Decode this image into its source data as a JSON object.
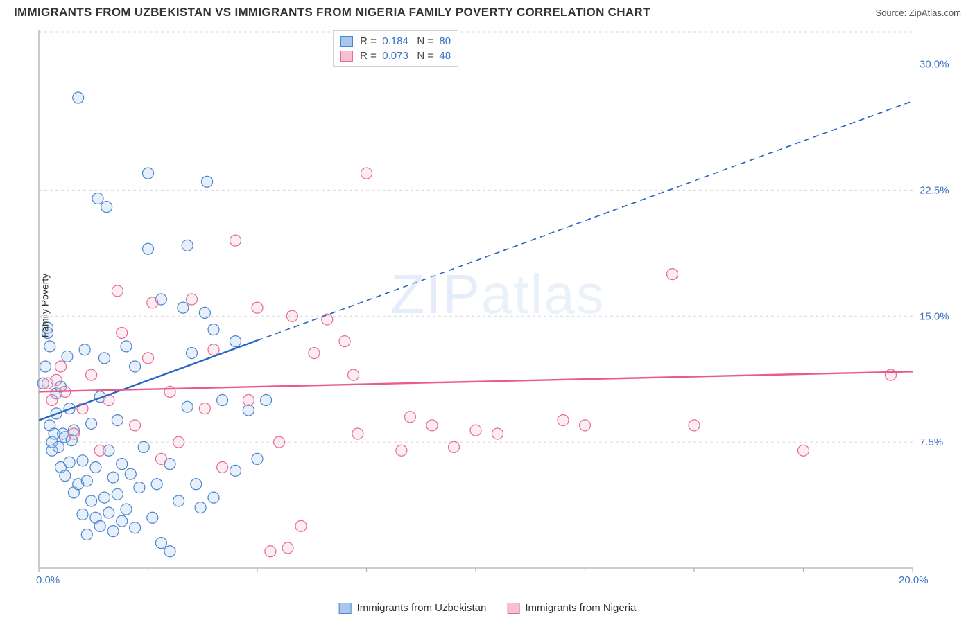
{
  "title": "IMMIGRANTS FROM UZBEKISTAN VS IMMIGRANTS FROM NIGERIA FAMILY POVERTY CORRELATION CHART",
  "source": "Source: ZipAtlas.com",
  "watermark": "ZIPatlas",
  "y_axis_label": "Family Poverty",
  "chart": {
    "type": "scatter",
    "background_color": "#ffffff",
    "grid_color": "#d9d9d9",
    "axis_color": "#b0b0b0",
    "tick_label_color": "#3a72c4",
    "tick_fontsize": 15,
    "xlim": [
      0,
      20
    ],
    "ylim": [
      0,
      32
    ],
    "x_ticks": [
      0,
      2.5,
      5,
      7.5,
      10,
      12.5,
      15,
      17.5,
      20
    ],
    "x_tick_labels": {
      "0": "0.0%",
      "20": "20.0%"
    },
    "y_ticks": [
      7.5,
      15,
      22.5,
      30
    ],
    "y_tick_labels": {
      "7.5": "7.5%",
      "15": "15.0%",
      "22.5": "22.5%",
      "30": "30.0%"
    },
    "marker_radius": 8,
    "marker_stroke_width": 1.2,
    "marker_fill_opacity": 0.28
  },
  "series": [
    {
      "id": "uzbekistan",
      "name": "Immigrants from Uzbekistan",
      "color_stroke": "#4a86d0",
      "color_fill": "#a9c7ec",
      "R": "0.184",
      "N": "80",
      "trend": {
        "solid_end_x": 5.0,
        "y_at_x0": 8.8,
        "slope": 0.95,
        "color": "#2a66c2",
        "width": 2.4,
        "dash": "8 6"
      },
      "points": [
        [
          0.1,
          11.0
        ],
        [
          0.15,
          12.0
        ],
        [
          0.2,
          14.0
        ],
        [
          0.2,
          14.3
        ],
        [
          0.25,
          8.5
        ],
        [
          0.25,
          13.2
        ],
        [
          0.3,
          7.0
        ],
        [
          0.3,
          7.5
        ],
        [
          0.35,
          8.0
        ],
        [
          0.4,
          9.2
        ],
        [
          0.4,
          10.4
        ],
        [
          0.45,
          7.2
        ],
        [
          0.5,
          6.0
        ],
        [
          0.5,
          10.8
        ],
        [
          0.55,
          8.0
        ],
        [
          0.6,
          5.5
        ],
        [
          0.6,
          7.8
        ],
        [
          0.65,
          12.6
        ],
        [
          0.7,
          6.3
        ],
        [
          0.7,
          9.5
        ],
        [
          0.75,
          7.6
        ],
        [
          0.8,
          4.5
        ],
        [
          0.8,
          8.2
        ],
        [
          0.9,
          5.0
        ],
        [
          0.9,
          28.0
        ],
        [
          1.0,
          3.2
        ],
        [
          1.0,
          6.4
        ],
        [
          1.05,
          13.0
        ],
        [
          1.1,
          2.0
        ],
        [
          1.1,
          5.2
        ],
        [
          1.2,
          4.0
        ],
        [
          1.2,
          8.6
        ],
        [
          1.3,
          3.0
        ],
        [
          1.3,
          6.0
        ],
        [
          1.35,
          22.0
        ],
        [
          1.4,
          2.5
        ],
        [
          1.4,
          10.2
        ],
        [
          1.5,
          4.2
        ],
        [
          1.5,
          12.5
        ],
        [
          1.55,
          21.5
        ],
        [
          1.6,
          3.3
        ],
        [
          1.6,
          7.0
        ],
        [
          1.7,
          2.2
        ],
        [
          1.7,
          5.4
        ],
        [
          1.8,
          4.4
        ],
        [
          1.8,
          8.8
        ],
        [
          1.9,
          2.8
        ],
        [
          1.9,
          6.2
        ],
        [
          2.0,
          3.5
        ],
        [
          2.0,
          13.2
        ],
        [
          2.1,
          5.6
        ],
        [
          2.2,
          2.4
        ],
        [
          2.2,
          12.0
        ],
        [
          2.3,
          4.8
        ],
        [
          2.4,
          7.2
        ],
        [
          2.5,
          19.0
        ],
        [
          2.5,
          23.5
        ],
        [
          2.6,
          3.0
        ],
        [
          2.7,
          5.0
        ],
        [
          2.8,
          1.5
        ],
        [
          2.8,
          16.0
        ],
        [
          3.0,
          6.2
        ],
        [
          3.0,
          1.0
        ],
        [
          3.2,
          4.0
        ],
        [
          3.3,
          15.5
        ],
        [
          3.4,
          9.6
        ],
        [
          3.4,
          19.2
        ],
        [
          3.5,
          12.8
        ],
        [
          3.6,
          5.0
        ],
        [
          3.7,
          3.6
        ],
        [
          3.8,
          15.2
        ],
        [
          3.85,
          23.0
        ],
        [
          4.0,
          4.2
        ],
        [
          4.0,
          14.2
        ],
        [
          4.2,
          10.0
        ],
        [
          4.5,
          5.8
        ],
        [
          4.5,
          13.5
        ],
        [
          4.8,
          9.4
        ],
        [
          5.0,
          6.5
        ],
        [
          5.2,
          10.0
        ]
      ]
    },
    {
      "id": "nigeria",
      "name": "Immigrants from Nigeria",
      "color_stroke": "#e86b94",
      "color_fill": "#f6bfd2",
      "R": "0.073",
      "N": "48",
      "trend": {
        "solid_end_x": 20.0,
        "y_at_x0": 10.5,
        "slope": 0.06,
        "color": "#ea5a8c",
        "width": 2.4,
        "dash": ""
      },
      "points": [
        [
          0.2,
          11.0
        ],
        [
          0.3,
          10.0
        ],
        [
          0.4,
          11.2
        ],
        [
          0.5,
          12.0
        ],
        [
          0.6,
          10.5
        ],
        [
          0.8,
          8.0
        ],
        [
          1.0,
          9.5
        ],
        [
          1.2,
          11.5
        ],
        [
          1.4,
          7.0
        ],
        [
          1.6,
          10.0
        ],
        [
          1.8,
          16.5
        ],
        [
          1.9,
          14.0
        ],
        [
          2.2,
          8.5
        ],
        [
          2.5,
          12.5
        ],
        [
          2.6,
          15.8
        ],
        [
          2.8,
          6.5
        ],
        [
          3.0,
          10.5
        ],
        [
          3.2,
          7.5
        ],
        [
          3.5,
          16.0
        ],
        [
          3.8,
          9.5
        ],
        [
          4.0,
          13.0
        ],
        [
          4.2,
          6.0
        ],
        [
          4.5,
          19.5
        ],
        [
          4.8,
          10.0
        ],
        [
          5.0,
          15.5
        ],
        [
          5.3,
          1.0
        ],
        [
          5.5,
          7.5
        ],
        [
          5.7,
          1.2
        ],
        [
          5.8,
          15.0
        ],
        [
          6.0,
          2.5
        ],
        [
          6.3,
          12.8
        ],
        [
          6.6,
          14.8
        ],
        [
          7.0,
          13.5
        ],
        [
          7.2,
          11.5
        ],
        [
          7.3,
          8.0
        ],
        [
          7.5,
          23.5
        ],
        [
          8.3,
          7.0
        ],
        [
          8.5,
          9.0
        ],
        [
          9.0,
          8.5
        ],
        [
          9.5,
          7.2
        ],
        [
          10.0,
          8.2
        ],
        [
          10.5,
          8.0
        ],
        [
          12.0,
          8.8
        ],
        [
          12.5,
          8.5
        ],
        [
          14.5,
          17.5
        ],
        [
          15.0,
          8.5
        ],
        [
          17.5,
          7.0
        ],
        [
          19.5,
          11.5
        ]
      ]
    }
  ],
  "legend_box": {
    "R_label": "R =",
    "N_label": "N ="
  },
  "legend_bottom_items": [
    {
      "name": "Immigrants from Uzbekistan",
      "stroke": "#4a86d0",
      "fill": "#a9c7ec"
    },
    {
      "name": "Immigrants from Nigeria",
      "stroke": "#e86b94",
      "fill": "#f6bfd2"
    }
  ]
}
